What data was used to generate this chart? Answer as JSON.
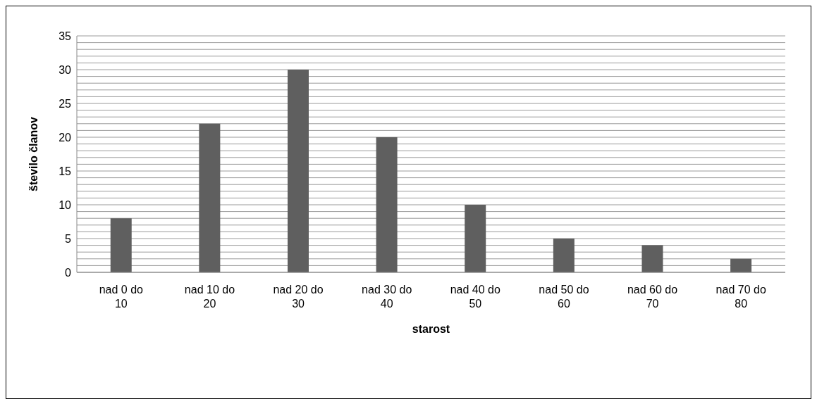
{
  "chart_data": {
    "type": "bar",
    "xlabel": "starost",
    "ylabel": "število članov",
    "categories": [
      "nad 0 do 10",
      "nad 10 do 20",
      "nad 20 do 30",
      "nad 30 do 40",
      "nad 40 do 50",
      "nad 50 do 60",
      "nad 60 do 70",
      "nad 70 do 80"
    ],
    "values": [
      8,
      22,
      30,
      20,
      10,
      5,
      4,
      2
    ],
    "color": "#5f5f5f",
    "ylim": [
      0,
      35
    ],
    "yticks": [
      0,
      {
        "value": 1,
        "label": null
      },
      {
        "value": 2,
        "label": null
      },
      {
        "value": 3,
        "label": null
      },
      {
        "value": 4,
        "label": null
      },
      5,
      {
        "value": 6,
        "label": null
      },
      {
        "value": 7,
        "label": null
      },
      {
        "value": 8,
        "label": null
      },
      {
        "value": 9,
        "label": null
      },
      10,
      {
        "value": 11,
        "label": null
      },
      {
        "value": 12,
        "label": null
      },
      {
        "value": 13,
        "label": null
      },
      {
        "value": 14,
        "label": null
      },
      15,
      {
        "value": 16,
        "label": null
      },
      {
        "value": 17,
        "label": null
      },
      {
        "value": 18,
        "label": null
      },
      {
        "value": 19,
        "label": null
      },
      20,
      {
        "value": 21,
        "label": null
      },
      {
        "value": 22,
        "label": null
      },
      {
        "value": 23,
        "label": null
      },
      {
        "value": 24,
        "label": null
      },
      25,
      {
        "value": 26,
        "label": null
      },
      {
        "value": 27,
        "label": null
      },
      {
        "value": 28,
        "label": null
      },
      {
        "value": 29,
        "label": null
      },
      30,
      {
        "value": 31,
        "label": null
      },
      {
        "value": 32,
        "label": null
      },
      {
        "value": 33,
        "label": null
      },
      {
        "value": 34,
        "label": null
      },
      35
    ],
    "grid": "y"
  }
}
